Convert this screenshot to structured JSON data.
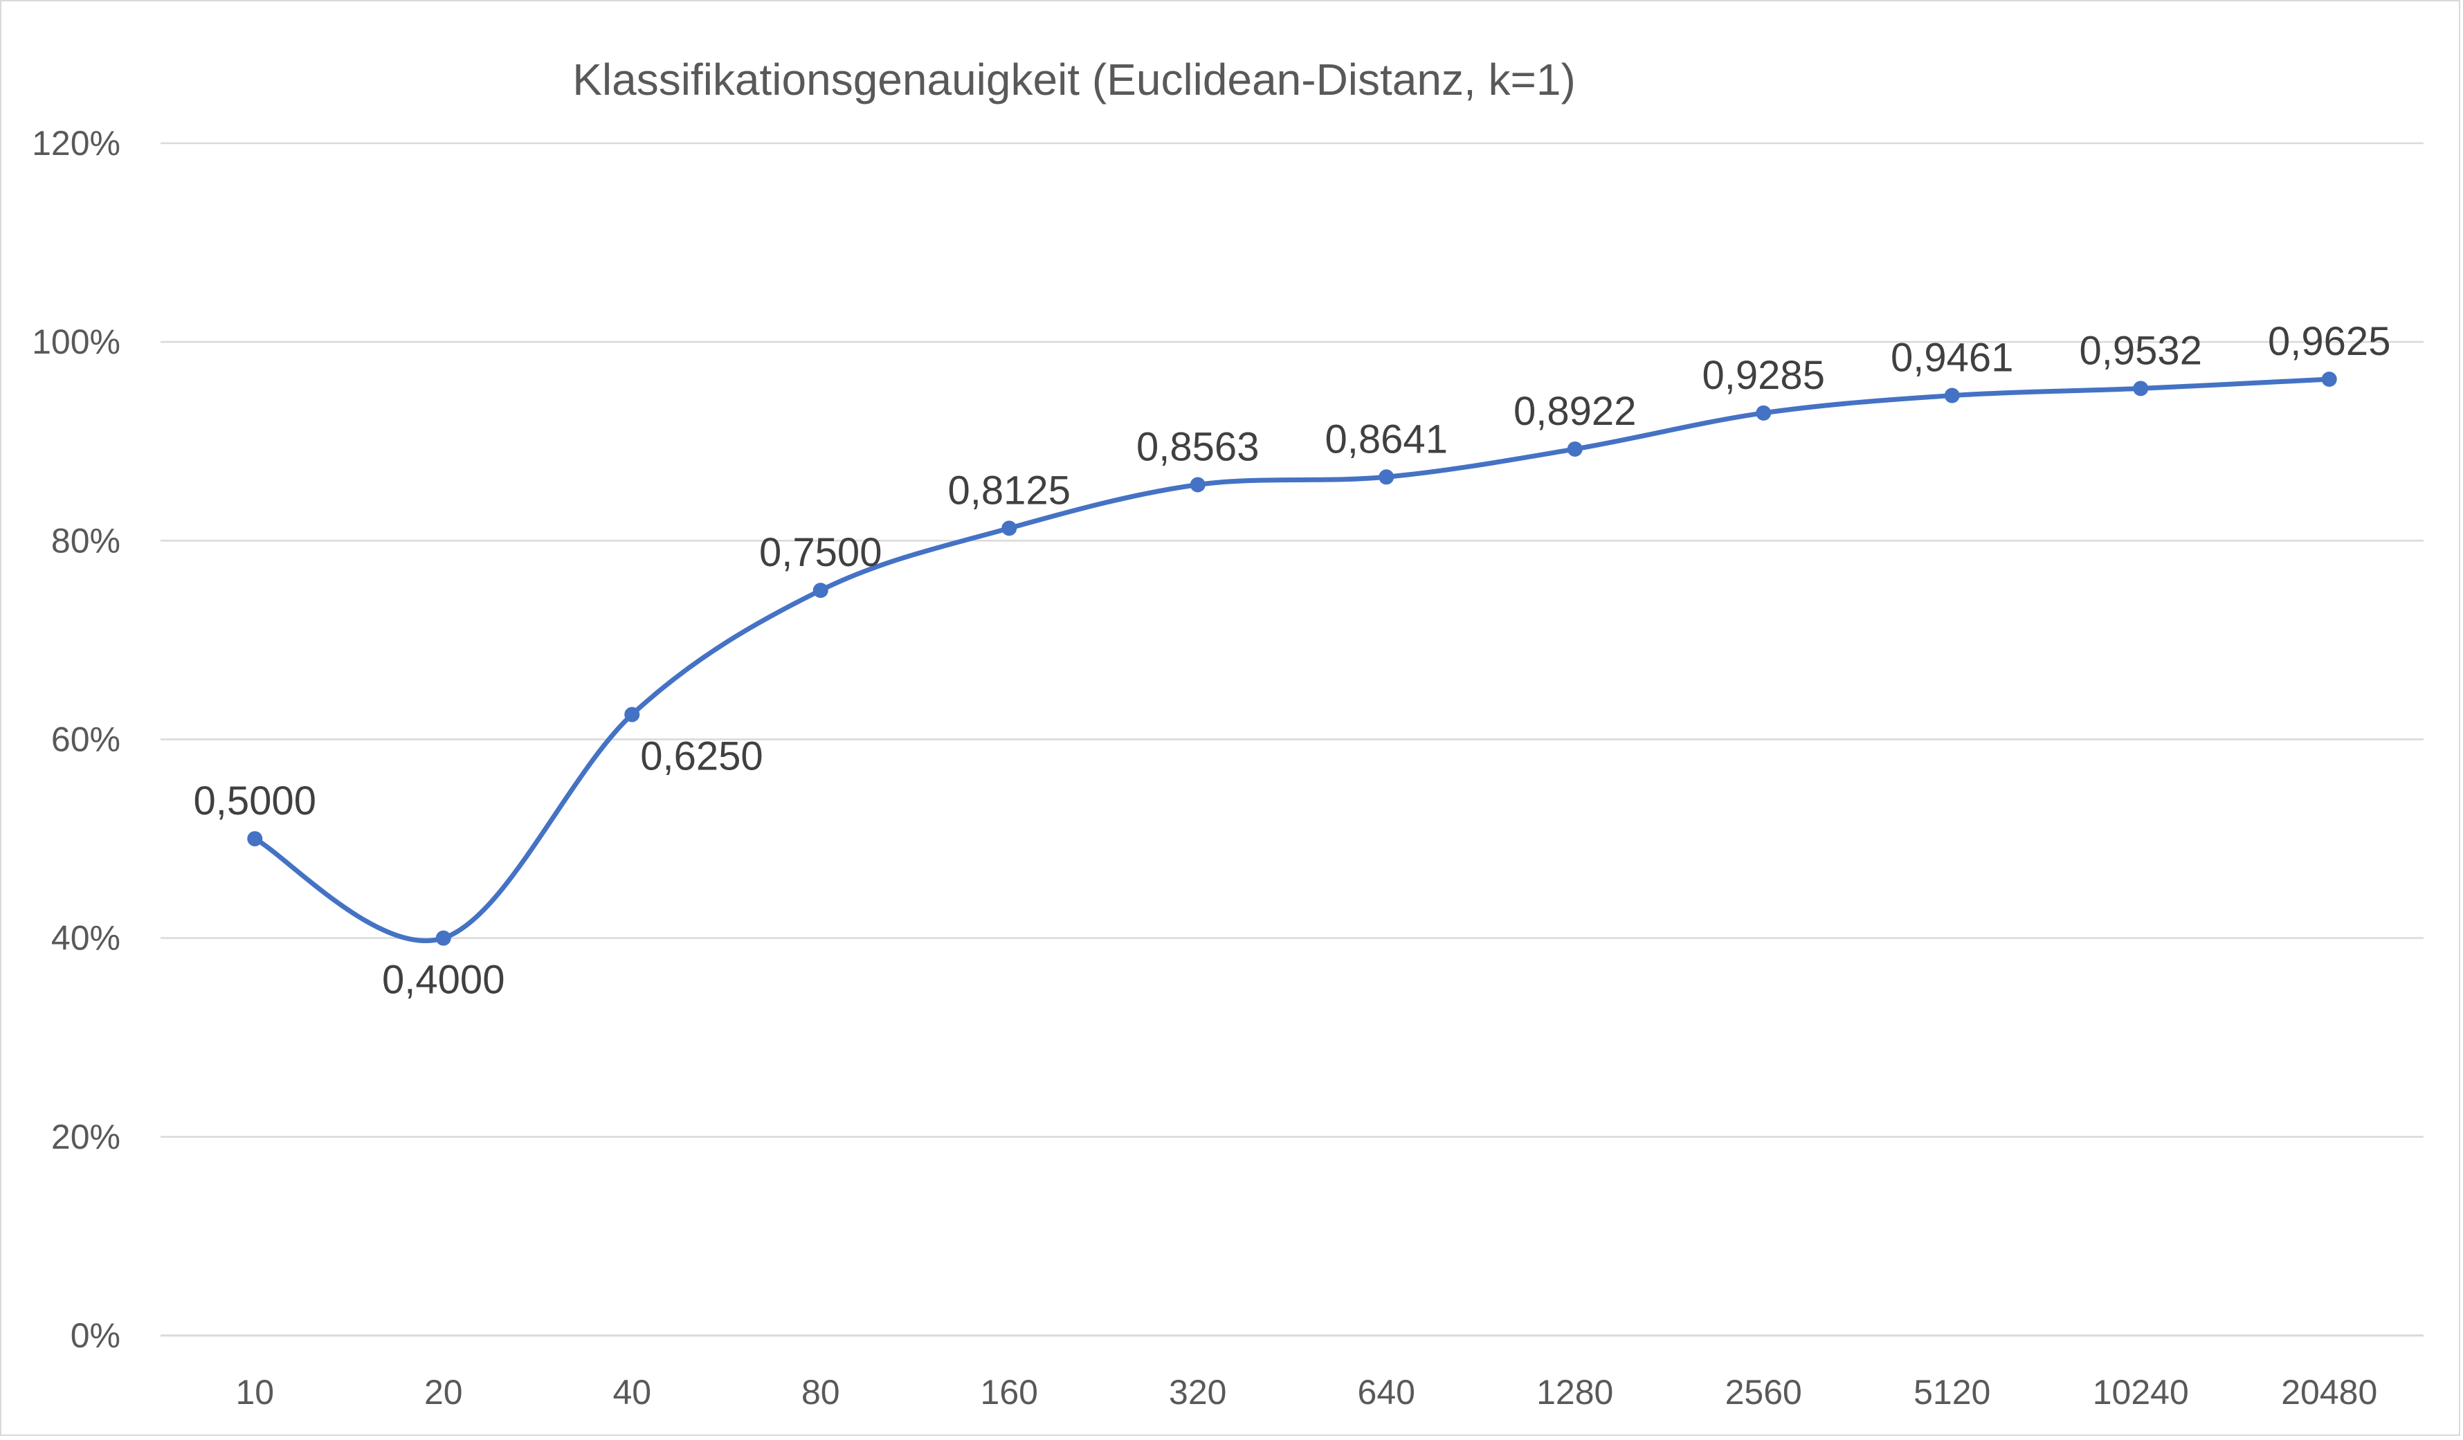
{
  "chart_data": {
    "type": "line",
    "title": "Klassifikationsgenauigkeit (Euclidean-Distanz, k=1)",
    "xlabel": "",
    "ylabel": "",
    "categories": [
      "10",
      "20",
      "40",
      "80",
      "160",
      "320",
      "640",
      "1280",
      "2560",
      "5120",
      "10240",
      "20480"
    ],
    "series": [
      {
        "values": [
          0.5,
          0.4,
          0.625,
          0.75,
          0.8125,
          0.8563,
          0.8641,
          0.8922,
          0.9285,
          0.9461,
          0.9532,
          0.9625
        ],
        "labels": [
          "0,5000",
          "0,4000",
          "0,6250",
          "0,7500",
          "0,8125",
          "0,8563",
          "0,8641",
          "0,8922",
          "0,9285",
          "0,9461",
          "0,9532",
          "0,9625"
        ],
        "label_positions": [
          "above",
          "below",
          "below-right",
          "above",
          "above",
          "above",
          "above",
          "above",
          "above",
          "above",
          "above",
          "above"
        ],
        "color": "#4472c4"
      }
    ],
    "ylim": [
      0,
      1.2
    ],
    "y_ticks": [
      0,
      0.2,
      0.4,
      0.6,
      0.8,
      1.0,
      1.2
    ],
    "y_tick_labels": [
      "0%",
      "20%",
      "40%",
      "60%",
      "80%",
      "100%",
      "120%"
    ],
    "grid": true,
    "smooth": true,
    "markers": true,
    "legend": "none"
  }
}
